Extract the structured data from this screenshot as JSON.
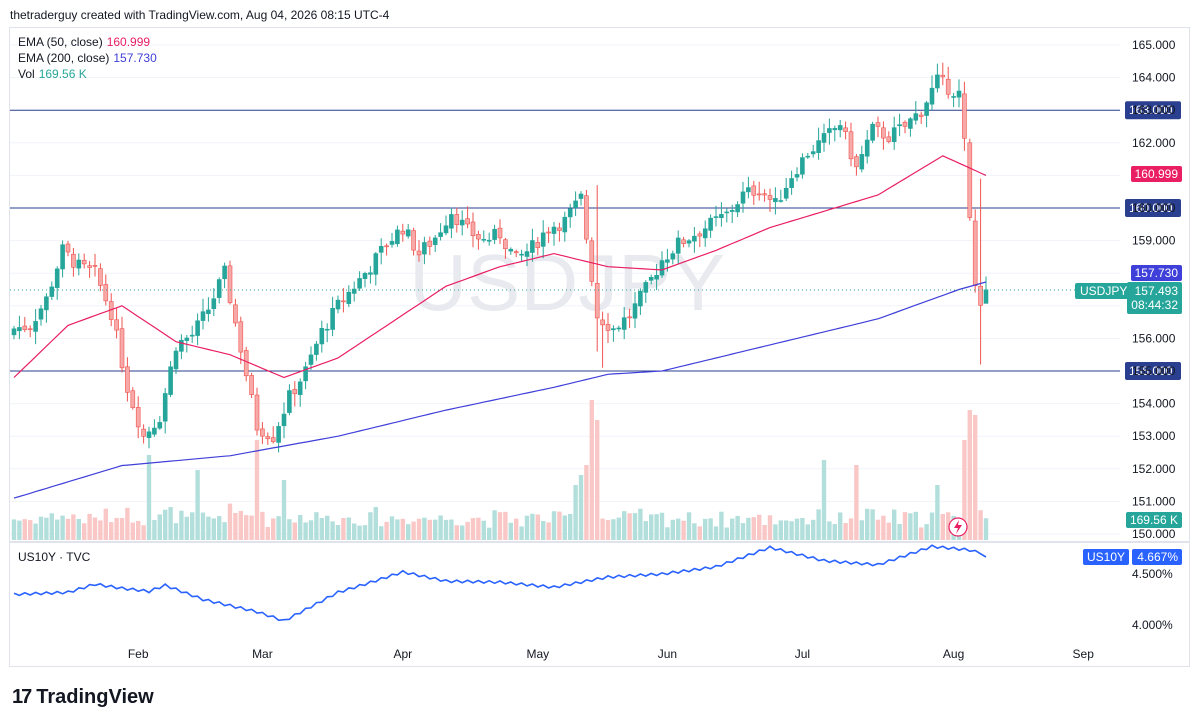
{
  "header": {
    "text": "thetraderguy created with TradingView.com, Aug 04, 2026 08:15 UTC-4"
  },
  "watermark": "USDJPY",
  "legend": {
    "ema50": {
      "label": "EMA (50, close)",
      "value": "160.999",
      "color": "#e91e63"
    },
    "ema200": {
      "label": "EMA (200, close)",
      "value": "157.730",
      "color": "#3f3fd9"
    },
    "vol": {
      "label": "Vol",
      "value": "169.56 K",
      "color": "#26a69a"
    }
  },
  "price_tags": {
    "ema50": "160.999",
    "ema200": "157.730",
    "symbol": "USDJPY",
    "last": "157.493",
    "countdown": "08:44:32",
    "vol": "169.56 K",
    "us10y_label": "US10Y",
    "us10y_value": "4.667%"
  },
  "sub_legend": "US10Y · TVC",
  "footer": {
    "brand": "TradingView",
    "logo": "17"
  },
  "chart_data": {
    "type": "candlestick",
    "symbol": "USDJPY",
    "y_ticks": [
      "165.000",
      "164.000",
      "163.000",
      "162.000",
      "161.000",
      "160.000",
      "159.000",
      "158.000",
      "157.000",
      "156.000",
      "155.000",
      "154.000",
      "153.000",
      "152.000",
      "151.000",
      "150.000"
    ],
    "ylim": [
      150,
      165
    ],
    "horizontal_levels": [
      163.0,
      160.0,
      155.0
    ],
    "x_ticks": [
      "Feb",
      "Mar",
      "Apr",
      "May",
      "Jun",
      "Jul",
      "Aug",
      "Sep"
    ],
    "price_anchors": [
      [
        0,
        156.3
      ],
      [
        3,
        156.4
      ],
      [
        6,
        157.2
      ],
      [
        9,
        158.7
      ],
      [
        12,
        158.2
      ],
      [
        15,
        158.0
      ],
      [
        18,
        156.8
      ],
      [
        21,
        154.5
      ],
      [
        24,
        153.0
      ],
      [
        27,
        153.6
      ],
      [
        30,
        155.8
      ],
      [
        33,
        156.1
      ],
      [
        36,
        156.9
      ],
      [
        39,
        158.0
      ],
      [
        42,
        155.7
      ],
      [
        45,
        153.3
      ],
      [
        48,
        153.0
      ],
      [
        51,
        154.2
      ],
      [
        54,
        155.0
      ],
      [
        57,
        156.2
      ],
      [
        60,
        157.0
      ],
      [
        63,
        157.6
      ],
      [
        66,
        158.2
      ],
      [
        69,
        158.9
      ],
      [
        72,
        159.4
      ],
      [
        75,
        158.6
      ],
      [
        78,
        159.1
      ],
      [
        81,
        159.9
      ],
      [
        84,
        159.3
      ],
      [
        87,
        159.0
      ],
      [
        90,
        159.2
      ],
      [
        93,
        158.4
      ],
      [
        96,
        158.8
      ],
      [
        99,
        159.4
      ],
      [
        102,
        159.6
      ],
      [
        105,
        160.3
      ],
      [
        108,
        156.7
      ],
      [
        111,
        156.3
      ],
      [
        114,
        156.7
      ],
      [
        117,
        157.5
      ],
      [
        120,
        158.4
      ],
      [
        123,
        158.9
      ],
      [
        126,
        159.2
      ],
      [
        129,
        159.5
      ],
      [
        132,
        159.8
      ],
      [
        135,
        160.4
      ],
      [
        138,
        160.6
      ],
      [
        141,
        160.1
      ],
      [
        144,
        161.0
      ],
      [
        147,
        161.7
      ],
      [
        150,
        162.1
      ],
      [
        153,
        162.6
      ],
      [
        156,
        161.2
      ],
      [
        159,
        162.4
      ],
      [
        162,
        162.2
      ],
      [
        165,
        162.5
      ],
      [
        168,
        163.0
      ],
      [
        171,
        163.9
      ],
      [
        174,
        163.6
      ],
      [
        175,
        163.5
      ],
      [
        176,
        162.0
      ],
      [
        177,
        159.6
      ],
      [
        178,
        157.6
      ],
      [
        179,
        157.2
      ],
      [
        180,
        157.49
      ]
    ],
    "ema50_anchors": [
      [
        0,
        154.8
      ],
      [
        10,
        156.4
      ],
      [
        20,
        157.0
      ],
      [
        30,
        155.9
      ],
      [
        40,
        155.5
      ],
      [
        50,
        154.8
      ],
      [
        60,
        155.4
      ],
      [
        70,
        156.5
      ],
      [
        80,
        157.6
      ],
      [
        90,
        158.2
      ],
      [
        100,
        158.6
      ],
      [
        110,
        158.2
      ],
      [
        120,
        158.1
      ],
      [
        130,
        158.7
      ],
      [
        140,
        159.4
      ],
      [
        150,
        159.9
      ],
      [
        160,
        160.4
      ],
      [
        168,
        161.2
      ],
      [
        172,
        161.6
      ],
      [
        176,
        161.3
      ],
      [
        180,
        160.999
      ]
    ],
    "ema200_anchors": [
      [
        0,
        151.1
      ],
      [
        20,
        152.1
      ],
      [
        40,
        152.4
      ],
      [
        60,
        153.0
      ],
      [
        80,
        153.8
      ],
      [
        100,
        154.5
      ],
      [
        110,
        154.9
      ],
      [
        120,
        155.0
      ],
      [
        140,
        155.8
      ],
      [
        160,
        156.6
      ],
      [
        175,
        157.5
      ],
      [
        180,
        157.73
      ]
    ],
    "us10y": {
      "y_ticks": [
        "4.500%",
        "4.000%"
      ],
      "last": 4.667,
      "anchors": [
        [
          0,
          4.3
        ],
        [
          10,
          4.32
        ],
        [
          15,
          4.4
        ],
        [
          20,
          4.36
        ],
        [
          25,
          4.33
        ],
        [
          28,
          4.39
        ],
        [
          35,
          4.25
        ],
        [
          40,
          4.19
        ],
        [
          45,
          4.13
        ],
        [
          50,
          4.04
        ],
        [
          55,
          4.18
        ],
        [
          60,
          4.32
        ],
        [
          65,
          4.4
        ],
        [
          72,
          4.52
        ],
        [
          80,
          4.43
        ],
        [
          90,
          4.42
        ],
        [
          100,
          4.37
        ],
        [
          110,
          4.47
        ],
        [
          120,
          4.5
        ],
        [
          130,
          4.57
        ],
        [
          140,
          4.76
        ],
        [
          150,
          4.63
        ],
        [
          160,
          4.59
        ],
        [
          170,
          4.77
        ],
        [
          178,
          4.73
        ],
        [
          180,
          4.667
        ]
      ]
    }
  }
}
